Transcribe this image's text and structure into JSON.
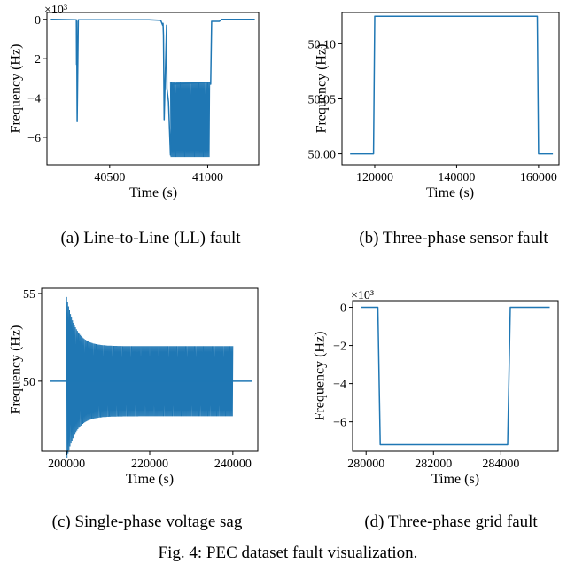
{
  "caption": "Fig. 4: PEC dataset fault visualization.",
  "line_color": "#1f77b4",
  "chart_data": [
    {
      "id": "a",
      "type": "line",
      "subcaption": "(a) Line-to-Line (LL) fault",
      "xlabel": "Time (s)",
      "ylabel": "Frequency (Hz)",
      "y_multiplier": "×10³",
      "xlim": [
        40180,
        41260
      ],
      "ylim": [
        -7.4,
        0.35
      ],
      "xticks": [
        40500,
        41000
      ],
      "xticklabels": [
        "40500",
        "41000"
      ],
      "yticks": [
        0,
        -2,
        -4,
        -6
      ],
      "yticklabels": [
        "0",
        "−2",
        "−4",
        "−6"
      ],
      "grid": false,
      "x": [
        40200,
        40330,
        40331,
        40332,
        40334,
        40340,
        40500,
        40700,
        40760,
        40770,
        40772,
        40774,
        40778,
        40790,
        40792,
        40800,
        40810,
        40820,
        41000,
        41010,
        41015,
        41020,
        41060,
        41070,
        41240
      ],
      "y": [
        0.0,
        -0.02,
        -2.3,
        -0.1,
        -5.2,
        -0.02,
        -0.02,
        -0.02,
        -0.05,
        -0.3,
        -0.2,
        -0.8,
        -5.1,
        -0.3,
        -3.5,
        -4.2,
        -6.9,
        -3.3,
        -3.2,
        -3.2,
        -3.3,
        -0.1,
        -0.1,
        0.0,
        0.0
      ],
      "oscillation": {
        "x_start": 40810,
        "x_end": 41010,
        "y_upper": -3.2,
        "y_lower": -7.0
      }
    },
    {
      "id": "b",
      "type": "line",
      "subcaption": "(b) Three-phase sensor fault",
      "xlabel": "Time (s)",
      "ylabel": "Frequency (Hz)",
      "xlim": [
        112000,
        165000
      ],
      "ylim": [
        49.99,
        50.1285
      ],
      "xticks": [
        120000,
        140000,
        160000
      ],
      "xticklabels": [
        "120000",
        "140000",
        "160000"
      ],
      "yticks": [
        50.0,
        50.05,
        50.1
      ],
      "yticklabels": [
        "50.00",
        "50.05",
        "50.10"
      ],
      "grid": false,
      "x": [
        114000,
        119700,
        120000,
        159700,
        160000,
        163500
      ],
      "y": [
        50.0,
        50.0,
        50.125,
        50.125,
        50.0,
        50.0
      ]
    },
    {
      "id": "c",
      "type": "line",
      "subcaption": "(c) Single-phase voltage sag",
      "xlabel": "Time (s)",
      "ylabel": "Frequency (Hz)",
      "xlim": [
        194000,
        246000
      ],
      "ylim": [
        46.0,
        55.3
      ],
      "xticks": [
        200000,
        220000,
        240000
      ],
      "xticklabels": [
        "200000",
        "220000",
        "240000"
      ],
      "yticks": [
        50,
        55
      ],
      "yticklabels": [
        "50",
        "55"
      ],
      "grid": false,
      "x": [
        196000,
        200000,
        240000,
        244500
      ],
      "y": [
        50.0,
        50.0,
        50.0,
        50.0
      ],
      "oscillation": {
        "x_start": 200000,
        "x_end": 240000,
        "y_upper": 52.0,
        "y_lower": 48.0,
        "initial_peak": 54.8,
        "initial_trough": 45.5
      }
    },
    {
      "id": "d",
      "type": "line",
      "subcaption": "(d) Three-phase grid fault",
      "xlabel": "Time (s)",
      "ylabel": "Frequency (Hz)",
      "y_multiplier": "×10³",
      "xlim": [
        279600,
        285700
      ],
      "ylim": [
        -7.55,
        0.35
      ],
      "xticks": [
        280000,
        282000,
        284000
      ],
      "xticklabels": [
        "280000",
        "282000",
        "284000"
      ],
      "yticks": [
        0,
        -2,
        -4,
        -6
      ],
      "yticklabels": [
        "0",
        "−2",
        "−4",
        "−6"
      ],
      "grid": false,
      "x": [
        279850,
        280350,
        280420,
        284200,
        284280,
        285450
      ],
      "y": [
        0.0,
        0.0,
        -7.2,
        -7.2,
        0.0,
        0.0
      ]
    }
  ]
}
